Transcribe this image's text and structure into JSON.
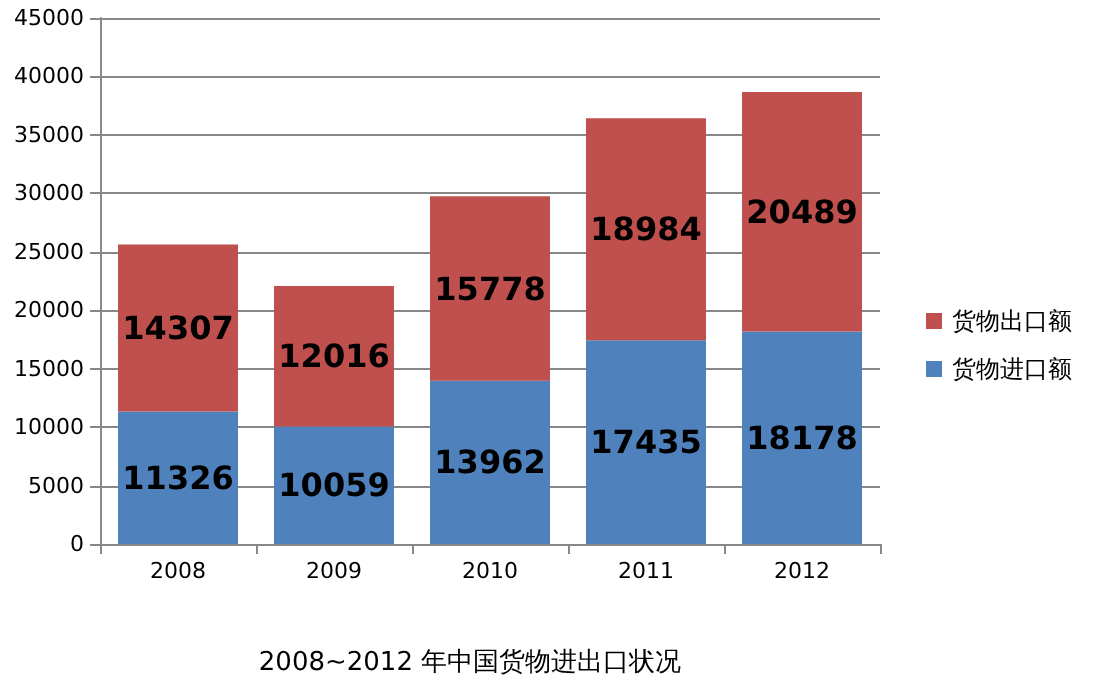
{
  "chart_data": {
    "type": "bar",
    "stacked": true,
    "title": "2008~2012 年中国货物进出口状况",
    "categories": [
      "2008",
      "2009",
      "2010",
      "2011",
      "2012"
    ],
    "series": [
      {
        "name": "货物进口额",
        "color": "#4f81bd",
        "values": [
          11326,
          10059,
          13962,
          17435,
          18178
        ]
      },
      {
        "name": "货物出口额",
        "color": "#c0504d",
        "values": [
          14307,
          12016,
          15778,
          18984,
          20489
        ]
      }
    ],
    "ylim": [
      0,
      45000
    ],
    "yticks": [
      0,
      5000,
      10000,
      15000,
      20000,
      25000,
      30000,
      35000,
      40000,
      45000
    ],
    "grid": "y",
    "legend": "right",
    "data_labels": true
  }
}
